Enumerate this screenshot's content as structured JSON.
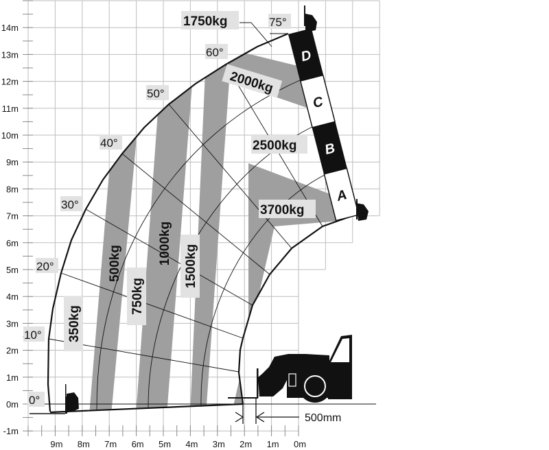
{
  "diagram": {
    "y_axis_labels": [
      "14m",
      "13m",
      "12m",
      "11m",
      "10m",
      "9m",
      "8m",
      "7m",
      "6m",
      "5m",
      "4m",
      "3m",
      "2m",
      "1m",
      "0m",
      "-1m"
    ],
    "x_axis_labels": [
      "9m",
      "8m",
      "7m",
      "6m",
      "5m",
      "4m",
      "3m",
      "2m",
      "1m",
      "0m"
    ],
    "angle_labels": {
      "a0": "0°",
      "a10": "10°",
      "a20": "20°",
      "a30": "30°",
      "a40": "40°",
      "a50": "50°",
      "a60": "60°",
      "a75": "75°"
    },
    "load_labels": {
      "l350": "350kg",
      "l500": "500kg",
      "l750": "750kg",
      "l1000": "1000kg",
      "l1500": "1500kg",
      "l1750": "1750kg",
      "l2000": "2000kg",
      "l2500": "2500kg",
      "l3700": "3700kg"
    },
    "boom_sections": [
      "D",
      "C",
      "B",
      "A"
    ],
    "dimension": "500mm",
    "colors": {
      "band": "#9f9f9f",
      "grid": "#bdbdbd",
      "label_bg": "#e2e2e2",
      "ink": "#111111"
    }
  }
}
